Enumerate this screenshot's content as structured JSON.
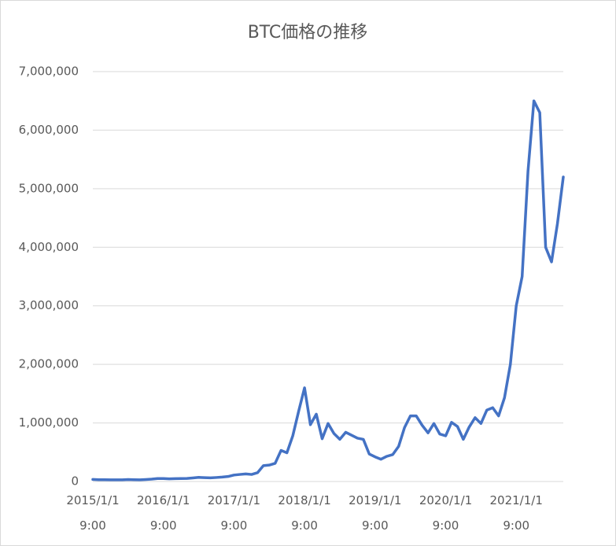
{
  "chart_data": {
    "type": "line",
    "title": "BTC価格の推移",
    "categories": [
      "2015/1/1 9:00",
      null,
      null,
      null,
      null,
      null,
      null,
      null,
      null,
      null,
      null,
      null,
      "2016/1/1 9:00",
      null,
      null,
      null,
      null,
      null,
      null,
      null,
      null,
      null,
      null,
      null,
      "2017/1/1 9:00",
      null,
      null,
      null,
      null,
      null,
      null,
      null,
      null,
      null,
      null,
      null,
      "2018/1/1 9:00",
      null,
      null,
      null,
      null,
      null,
      null,
      null,
      null,
      null,
      null,
      null,
      "2019/1/1 9:00",
      null,
      null,
      null,
      null,
      null,
      null,
      null,
      null,
      null,
      null,
      null,
      "2020/1/1 9:00",
      null,
      null,
      null,
      null,
      null,
      null,
      null,
      null,
      null,
      null,
      null,
      "2021/1/1 9:00",
      null,
      null,
      null,
      null,
      null,
      null,
      null,
      null
    ],
    "series": [
      {
        "name": "BTC",
        "color": "#4472c4",
        "values": [
          35000,
          30000,
          30000,
          28000,
          28000,
          28000,
          33000,
          30000,
          28000,
          33000,
          40000,
          50000,
          50000,
          45000,
          48000,
          50000,
          52000,
          60000,
          70000,
          65000,
          62000,
          68000,
          75000,
          85000,
          110000,
          120000,
          130000,
          120000,
          150000,
          270000,
          280000,
          310000,
          530000,
          490000,
          780000,
          1200000,
          1600000,
          970000,
          1150000,
          730000,
          990000,
          820000,
          720000,
          840000,
          790000,
          740000,
          720000,
          470000,
          420000,
          380000,
          430000,
          460000,
          600000,
          920000,
          1120000,
          1120000,
          960000,
          830000,
          990000,
          810000,
          780000,
          1010000,
          940000,
          720000,
          930000,
          1090000,
          990000,
          1220000,
          1260000,
          1120000,
          1430000,
          2000000,
          3000000,
          3500000,
          5300000,
          6500000,
          6300000,
          4000000,
          3750000,
          4400000,
          5200000
        ]
      }
    ],
    "ylim": [
      0,
      7000000
    ],
    "yticks": [
      0,
      {
        "value": 1000000,
        "label": "1,000,000"
      },
      {
        "value": 2000000,
        "label": "2,000,000"
      },
      {
        "value": 3000000,
        "label": "3,000,000"
      },
      {
        "value": 4000000,
        "label": "4,000,000"
      },
      {
        "value": 5000000,
        "label": "5,000,000"
      },
      {
        "value": 6000000,
        "label": "6,000,000"
      },
      {
        "value": 7000000,
        "label": "7,000,000"
      }
    ],
    "grid": true
  }
}
